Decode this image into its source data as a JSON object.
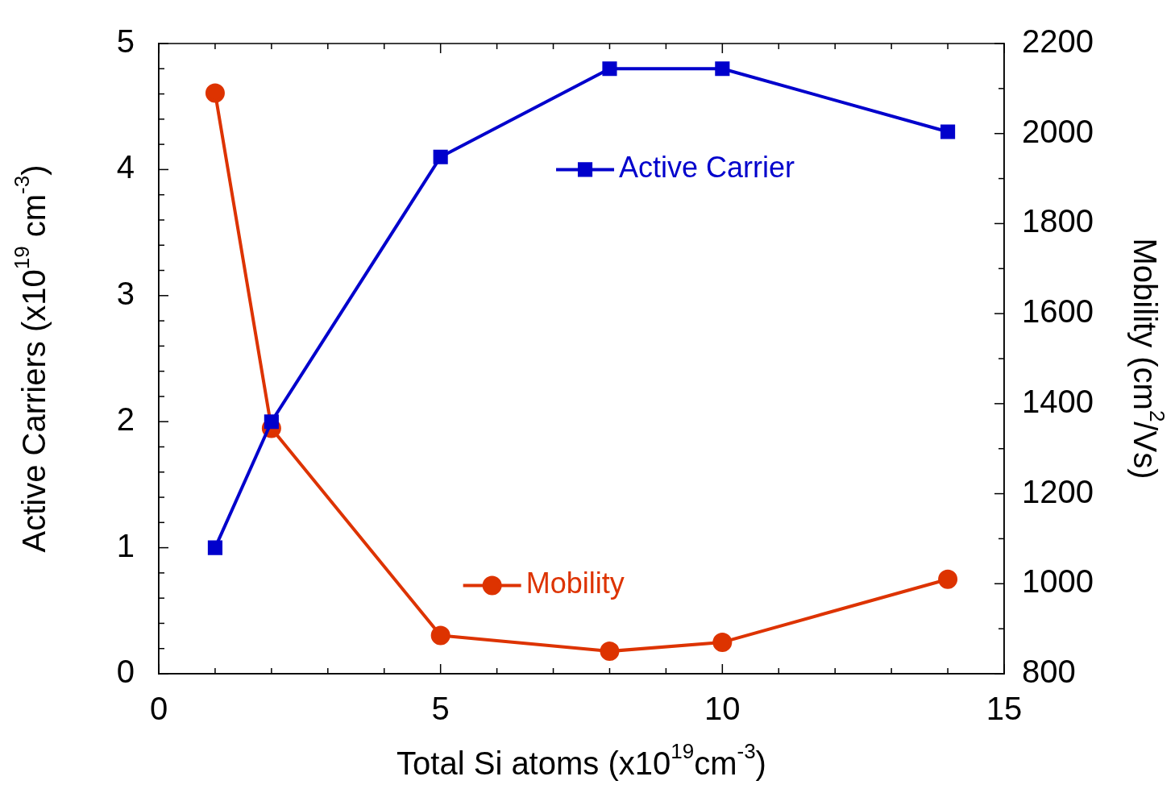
{
  "chart_data": {
    "type": "line",
    "xlabel": "Total Si atoms (x10$^{19}$cm$^{-3}$)",
    "ylabel": "Active Carriers (x10$^{19}$ cm$^{-3}$)",
    "y2label": "Mobility (cm$^{2}$/Vs)",
    "x": [
      1,
      2,
      5,
      8,
      10,
      14
    ],
    "series": [
      {
        "name": "Active Carrier",
        "color": "#0000cc",
        "values": [
          1.0,
          2.0,
          4.1,
          4.8,
          4.8,
          4.3
        ],
        "marker": "square"
      },
      {
        "name": "Mobility",
        "color": "#dd3300",
        "values": [
          2090,
          1345,
          885,
          850,
          870,
          1010
        ],
        "marker": "circle",
        "axis": "y2"
      }
    ],
    "xlim": [
      0,
      15
    ],
    "ylim": [
      0,
      5
    ],
    "y2lim": [
      800,
      2200
    ],
    "xticks": [
      0,
      {
        "value": 1,
        "label": null
      },
      {
        "value": 2,
        "label": null
      },
      {
        "value": 3,
        "label": null
      },
      {
        "value": 4,
        "label": null
      },
      5,
      {
        "value": 6,
        "label": null
      },
      {
        "value": 7,
        "label": null
      },
      {
        "value": 8,
        "label": null
      },
      {
        "value": 9,
        "label": null
      },
      10,
      {
        "value": 11,
        "label": null
      },
      {
        "value": 12,
        "label": null
      },
      {
        "value": 13,
        "label": null
      },
      {
        "value": 14,
        "label": null
      },
      15
    ],
    "yticks": [
      0,
      {
        "value": 0.2,
        "label": null
      },
      {
        "value": 0.4,
        "label": null
      },
      {
        "value": 0.6,
        "label": null
      },
      {
        "value": 0.8,
        "label": null
      },
      1,
      {
        "value": 1.2,
        "label": null
      },
      {
        "value": 1.4,
        "label": null
      },
      {
        "value": 1.6,
        "label": null
      },
      {
        "value": 1.8,
        "label": null
      },
      2,
      {
        "value": 2.2,
        "label": null
      },
      {
        "value": 2.4,
        "label": null
      },
      {
        "value": 2.6,
        "label": null
      },
      {
        "value": 2.8,
        "label": null
      },
      3,
      {
        "value": 3.2,
        "label": null
      },
      {
        "value": 3.4,
        "label": null
      },
      {
        "value": 3.6,
        "label": null
      },
      {
        "value": 3.8,
        "label": null
      },
      4,
      {
        "value": 4.2,
        "label": null
      },
      {
        "value": 4.4,
        "label": null
      },
      {
        "value": 4.6,
        "label": null
      },
      {
        "value": 4.8,
        "label": null
      },
      5
    ],
    "y2ticks": [
      800,
      {
        "value": 900,
        "label": null
      },
      1000,
      {
        "value": 1100,
        "label": null
      },
      1200,
      {
        "value": 1300,
        "label": null
      },
      1400,
      {
        "value": 1500,
        "label": null
      },
      1600,
      {
        "value": 1700,
        "label": null
      },
      1800,
      {
        "value": 1900,
        "label": null
      },
      2000,
      {
        "value": 2100,
        "label": null
      },
      2200
    ],
    "grid": false,
    "line_style": "solid",
    "legend": "bottom right"
  }
}
